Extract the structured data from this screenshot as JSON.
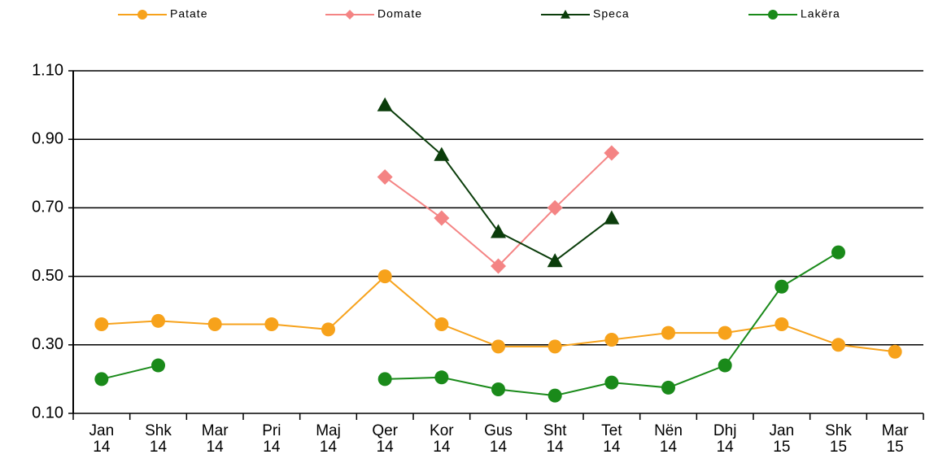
{
  "chart_data": {
    "type": "line",
    "categories": [
      [
        "Jan",
        "14"
      ],
      [
        "Shk",
        "14"
      ],
      [
        "Mar",
        "14"
      ],
      [
        "Pri",
        "14"
      ],
      [
        "Maj",
        "14"
      ],
      [
        "Qer",
        "14"
      ],
      [
        "Kor",
        "14"
      ],
      [
        "Gus",
        "14"
      ],
      [
        "Sht",
        "14"
      ],
      [
        "Tet",
        "14"
      ],
      [
        "Nën",
        "14"
      ],
      [
        "Dhj",
        "14"
      ],
      [
        "Jan",
        "15"
      ],
      [
        "Shk",
        "15"
      ],
      [
        "Mar",
        "15"
      ]
    ],
    "series": [
      {
        "name": "Patate",
        "color": "#f7a21b",
        "marker": "circle",
        "values": [
          0.36,
          0.37,
          0.36,
          0.36,
          0.345,
          0.5,
          0.36,
          0.295,
          0.295,
          0.315,
          0.335,
          0.335,
          0.36,
          0.3,
          0.28
        ]
      },
      {
        "name": "Domate",
        "color": "#f48484",
        "marker": "diamond",
        "values": [
          null,
          null,
          null,
          null,
          null,
          0.79,
          0.67,
          0.53,
          0.7,
          0.86,
          null,
          null,
          null,
          null,
          null
        ]
      },
      {
        "name": "Speca",
        "color": "#0b3d0b",
        "marker": "triangle",
        "values": [
          null,
          null,
          null,
          null,
          null,
          1.0,
          0.855,
          0.63,
          0.545,
          0.67,
          null,
          null,
          null,
          null,
          null
        ]
      },
      {
        "name": "Lakëra",
        "color": "#1a8a1a",
        "marker": "circle",
        "values": [
          0.2,
          0.24,
          null,
          null,
          null,
          0.2,
          0.205,
          0.17,
          0.152,
          0.19,
          0.175,
          0.24,
          0.47,
          0.57,
          null
        ]
      }
    ],
    "ylim": [
      0.1,
      1.1
    ],
    "yticks": [
      {
        "value": 0.1,
        "label": "0.10"
      },
      {
        "value": 0.3,
        "label": "0.30"
      },
      {
        "value": 0.5,
        "label": "0.50"
      },
      {
        "value": 0.7,
        "label": "0.70"
      },
      {
        "value": 0.9,
        "label": "0.90"
      },
      {
        "value": 1.1,
        "label": "1.10"
      }
    ],
    "grid": true,
    "legend": "top"
  }
}
